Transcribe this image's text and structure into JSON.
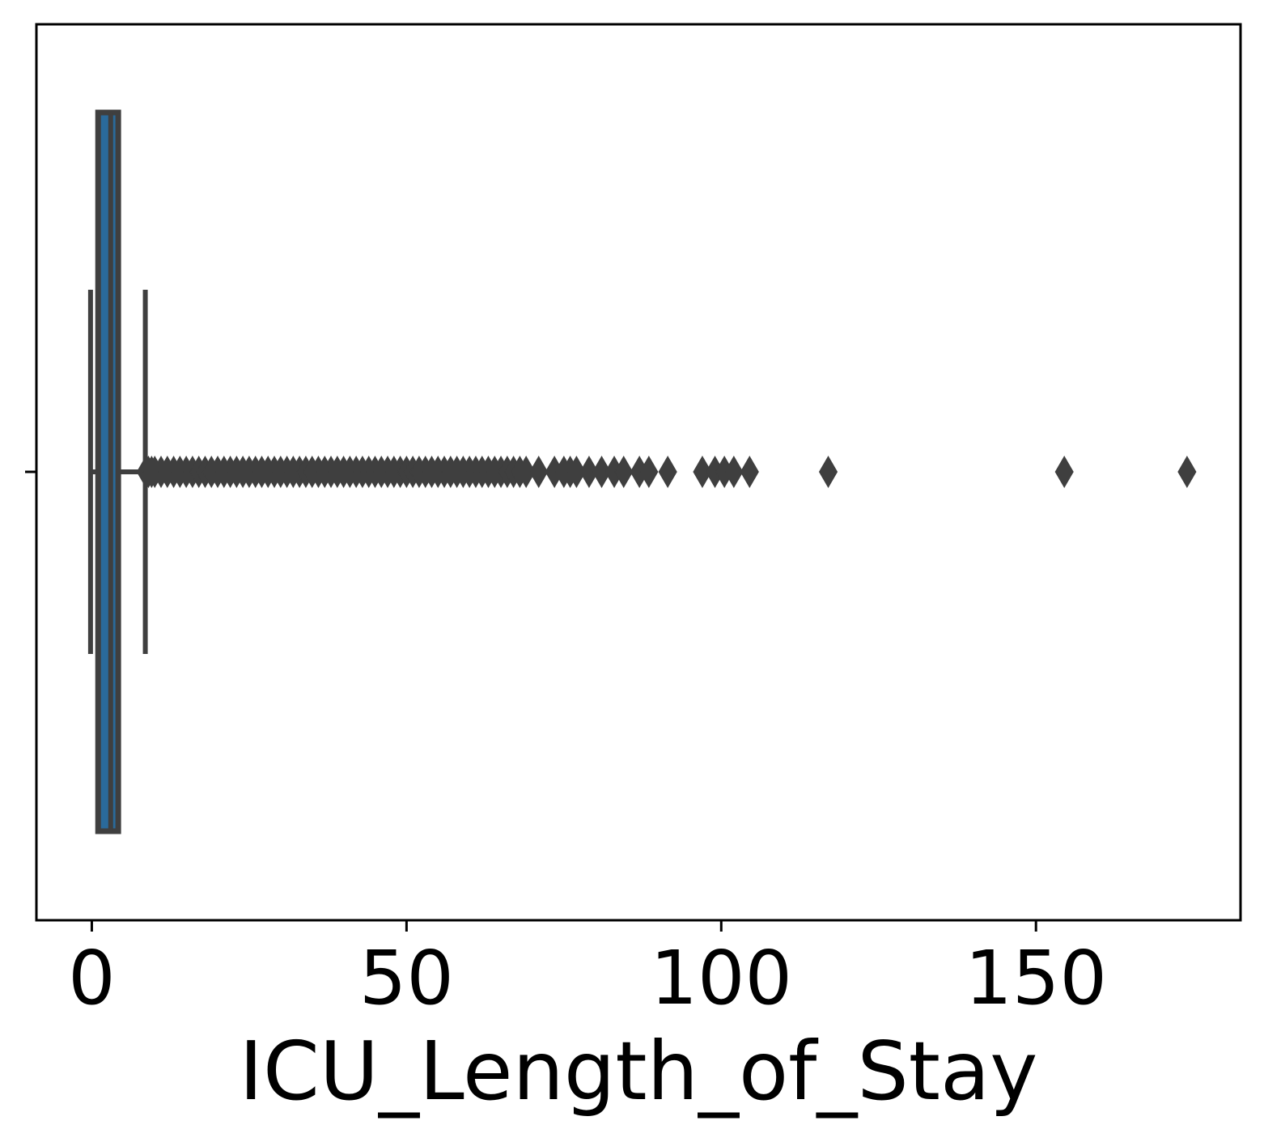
{
  "chart_data": {
    "type": "box",
    "orientation": "horizontal",
    "title": "",
    "xlabel": "ICU_Length_of_Stay",
    "ylabel": "",
    "xlim": [
      -8.8,
      182.5
    ],
    "xticks": [
      0,
      50,
      100,
      150
    ],
    "xtick_labels": [
      "0",
      "50",
      "100",
      "150"
    ],
    "grid": false,
    "legend": "none",
    "box": {
      "whisker_low": -0.2,
      "q1": 1.0,
      "median": 3.0,
      "q3": 4.2,
      "whisker_high": 8.5
    },
    "outliers": [
      8.6,
      9,
      9.5,
      10,
      11,
      12,
      13,
      14,
      15,
      16,
      17,
      18,
      19,
      20,
      21,
      22,
      23,
      24,
      25,
      26,
      27,
      28,
      29,
      30,
      31,
      32,
      33,
      34,
      35,
      36,
      37,
      38,
      39,
      40,
      41,
      42,
      43,
      44,
      45,
      46,
      47,
      48,
      49,
      50,
      51,
      52,
      53,
      54,
      55,
      56,
      57,
      58,
      59,
      60,
      61,
      62,
      63,
      64,
      65,
      66,
      67,
      68,
      69,
      71,
      73.5,
      75,
      76,
      77,
      79,
      81,
      83,
      84.5,
      87,
      88.5,
      91.5,
      97,
      99,
      100.5,
      102,
      104.5,
      117,
      154.5,
      174
    ],
    "colors": {
      "box_fill": "#2a6a9b",
      "box_line": "#3f3f3f",
      "axis": "#000000"
    }
  }
}
